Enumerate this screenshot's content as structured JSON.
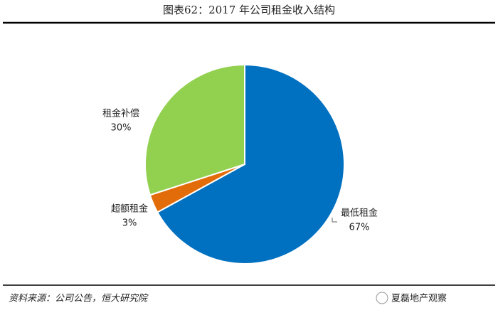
{
  "chart_data": {
    "type": "pie",
    "title": "图表62：2017 年公司租金收入结构",
    "categories": [
      "最低租金",
      "超额租金",
      "租金补偿"
    ],
    "values": [
      67,
      3,
      30
    ],
    "value_labels": [
      "67%",
      "3%",
      "30%"
    ],
    "colors": [
      "#0070c0",
      "#e36c0a",
      "#92d050"
    ]
  },
  "footer": {
    "source": "资料来源：公司公告，恒大研究院",
    "watermark": "夏磊地产观察"
  }
}
